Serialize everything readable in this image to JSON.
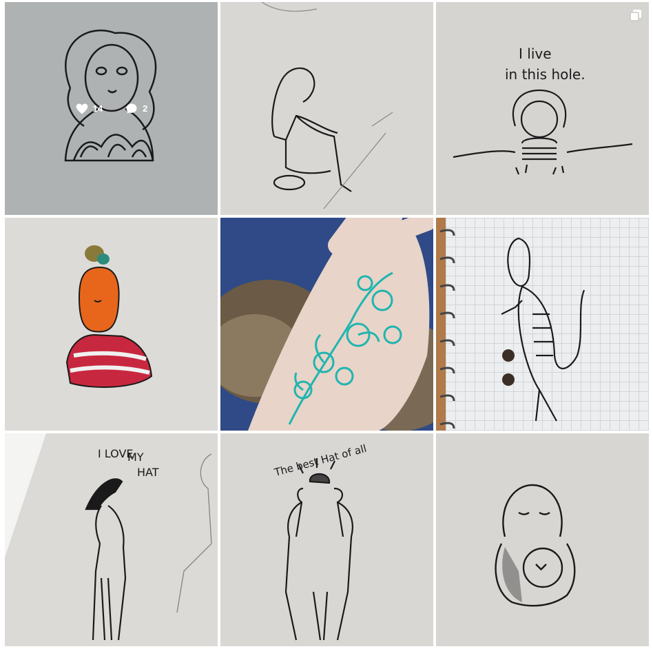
{
  "grid": {
    "posts": [
      {
        "likes": "14",
        "comments": "2",
        "likes_icon": "heart-icon",
        "comments_icon": "comment-bubble-icon"
      },
      {},
      {
        "caption_line1": "I live",
        "caption_line2": "in this hole.",
        "badge_icon": "multiple-images-icon"
      },
      {},
      {},
      {},
      {
        "caption_line1": "I LOVE",
        "caption_line2": "MY",
        "caption_line3": "HAT"
      },
      {
        "caption": "The best Hat of all"
      },
      {}
    ]
  },
  "colors": {
    "paper_light": "#dedcda",
    "paper_grey": "#c9cbcb",
    "ink": "#1a1a1a",
    "teal_ink": "#1fb5b0",
    "orange_face": "#e8661c",
    "stripe_red": "#c8283f",
    "blanket_blue": "#2f4a86"
  }
}
